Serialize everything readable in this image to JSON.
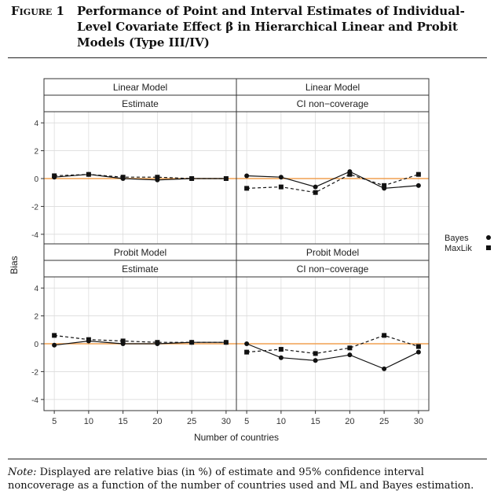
{
  "figure": {
    "label": "Figure 1",
    "title": "Performance of Point and Interval Estimates of Individual-Level Covariate Effect β in Hierarchical Linear and Probit Models (Type III/IV)"
  },
  "note": {
    "prefix": "Note:",
    "text": " Displayed are relative bias (in %) of estimate and 95% confidence interval noncoverage as a function of the number of countries used and ML and Bayes estimation."
  },
  "chart_data": {
    "type": "line",
    "xlabel": "Number of countries",
    "ylabel": "Bias",
    "x": [
      5,
      10,
      15,
      20,
      25,
      30
    ],
    "x_ticks": [
      5,
      10,
      15,
      20,
      25,
      30
    ],
    "xlim": [
      3.5,
      31.5
    ],
    "y_ticks": [
      4,
      2,
      0,
      -2,
      -4
    ],
    "ylim": [
      -4.8,
      4.8
    ],
    "grid": true,
    "reference_line": {
      "y": 0,
      "color": "#f0a050"
    },
    "legend": {
      "placement": "right",
      "entries": [
        {
          "name": "Bayes",
          "marker": "circle",
          "line": "solid"
        },
        {
          "name": "MaxLik",
          "marker": "square",
          "line": "dashed"
        }
      ]
    },
    "panels": [
      {
        "model": "Linear Model",
        "measure": "Estimate",
        "series": [
          {
            "name": "Bayes",
            "values": [
              0.1,
              0.3,
              0.0,
              -0.1,
              0.0,
              0.0
            ]
          },
          {
            "name": "MaxLik",
            "values": [
              0.2,
              0.3,
              0.1,
              0.1,
              0.0,
              0.0
            ]
          }
        ]
      },
      {
        "model": "Linear Model",
        "measure": "CI non−coverage",
        "series": [
          {
            "name": "Bayes",
            "values": [
              0.2,
              0.1,
              -0.6,
              0.5,
              -0.7,
              -0.5
            ]
          },
          {
            "name": "MaxLik",
            "values": [
              -0.7,
              -0.6,
              -1.0,
              0.3,
              -0.5,
              0.3
            ]
          }
        ]
      },
      {
        "model": "Probit Model",
        "measure": "Estimate",
        "series": [
          {
            "name": "Bayes",
            "values": [
              -0.1,
              0.2,
              0.0,
              0.0,
              0.1,
              0.1
            ]
          },
          {
            "name": "MaxLik",
            "values": [
              0.6,
              0.3,
              0.2,
              0.1,
              0.1,
              0.1
            ]
          }
        ]
      },
      {
        "model": "Probit Model",
        "measure": "CI non−coverage",
        "series": [
          {
            "name": "Bayes",
            "values": [
              0.0,
              -1.0,
              -1.2,
              -0.8,
              -1.8,
              -0.6
            ]
          },
          {
            "name": "MaxLik",
            "values": [
              -0.6,
              -0.4,
              -0.7,
              -0.3,
              0.6,
              -0.2
            ]
          }
        ]
      }
    ]
  }
}
